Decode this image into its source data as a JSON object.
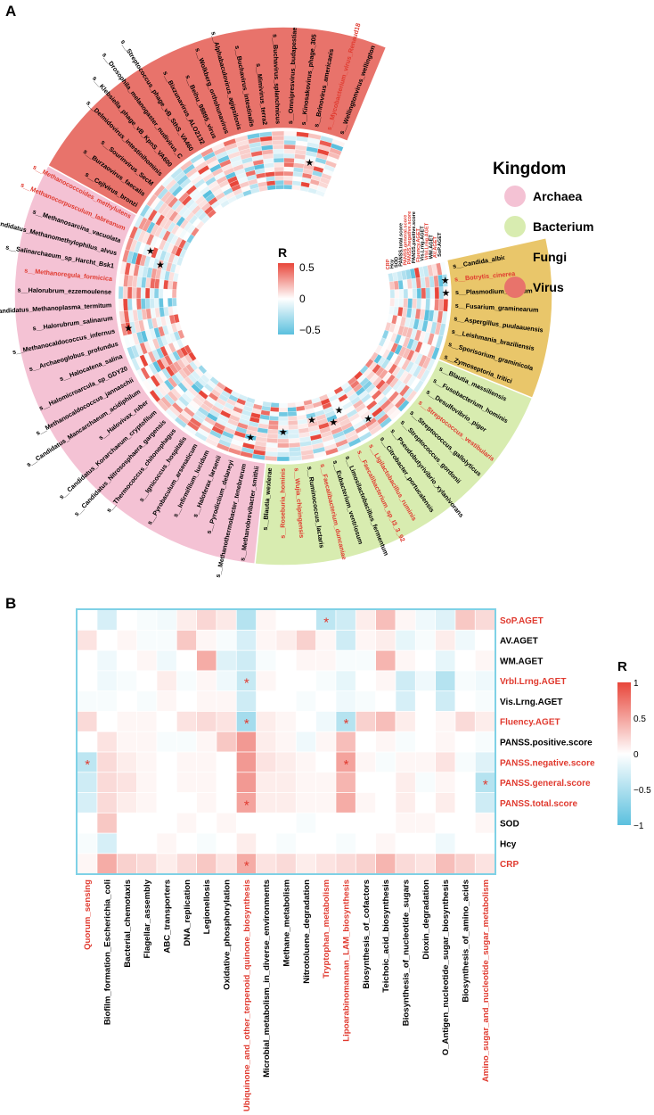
{
  "panel_labels": {
    "a": "A",
    "b": "B"
  },
  "colors": {
    "neg": "#5bc0de",
    "pos": "#e8463a",
    "mid": "#ffffff",
    "highlight": "#e03a2f",
    "heat_border": "#7fd1e6"
  },
  "chart_data": [
    {
      "type": "heatmap",
      "subtype": "circular",
      "legend_title": "Kingdom",
      "legend_items": [
        {
          "name": "Archaea",
          "color": "#f4c2d4"
        },
        {
          "name": "Bacterium",
          "color": "#d8ecb0"
        },
        {
          "name": "Fungi",
          "color": "#e9c66a"
        },
        {
          "name": "Virus",
          "color": "#e8736b"
        }
      ],
      "colorbar": {
        "title": "R",
        "ticks": [
          "0.5",
          "0",
          "−0.5"
        ],
        "range": [
          -0.5,
          0.5
        ]
      },
      "ring_labels": [
        "CRP",
        "Hcy",
        "SOD",
        "PANSS.total.score",
        "PANSS.general.score",
        "PANSS.negative.score",
        "PANSS.positive.score",
        "Fluency.AGET",
        "Vis.Lrng.AGET",
        "Vrbl.Lrng.AGET",
        "WM.AGET",
        "AV.AGET",
        "SoP.AGET"
      ],
      "ring_label_colors": [
        "red",
        "black",
        "black",
        "black",
        "red",
        "red",
        "black",
        "red",
        "black",
        "red",
        "black",
        "red",
        "black"
      ],
      "species": [
        {
          "name": "s__Candida_albicans",
          "kingdom": "Fungi",
          "highlight": false
        },
        {
          "name": "s__Botrytis_cinerea",
          "kingdom": "Fungi",
          "highlight": true
        },
        {
          "name": "s__Plasmodium_relictum",
          "kingdom": "Fungi",
          "highlight": false
        },
        {
          "name": "s__Fusarium_graminearum",
          "kingdom": "Fungi",
          "highlight": false
        },
        {
          "name": "s__Aspergillus_puulaauensis",
          "kingdom": "Fungi",
          "highlight": false
        },
        {
          "name": "s__Leishmania_braziliensis",
          "kingdom": "Fungi",
          "highlight": false
        },
        {
          "name": "s__Sporisorium_graminicola",
          "kingdom": "Fungi",
          "highlight": false
        },
        {
          "name": "s__Zymoseptoria_tritici",
          "kingdom": "Fungi",
          "highlight": false
        },
        {
          "name": "s__Blautia_massiliensis",
          "kingdom": "Bacterium",
          "highlight": false
        },
        {
          "name": "s__Fusobacterium_hominis",
          "kingdom": "Bacterium",
          "highlight": false
        },
        {
          "name": "s__Desulfovibrio_piger",
          "kingdom": "Bacterium",
          "highlight": false
        },
        {
          "name": "s__Streptococcus_vestibularis",
          "kingdom": "Bacterium",
          "highlight": true
        },
        {
          "name": "s__Streptococcus_gallolyticus",
          "kingdom": "Bacterium",
          "highlight": false
        },
        {
          "name": "s__Streptococcus_gordonii",
          "kingdom": "Bacterium",
          "highlight": false
        },
        {
          "name": "s__Pseudobutyrivibrio_xylanivorans",
          "kingdom": "Bacterium",
          "highlight": false
        },
        {
          "name": "s__Citrobacter_portucalensis",
          "kingdom": "Bacterium",
          "highlight": false
        },
        {
          "name": "s__Ligilactobacillus_ruminis",
          "kingdom": "Bacterium",
          "highlight": true
        },
        {
          "name": "s__Faecalibacterium_sp_I3_3_92",
          "kingdom": "Bacterium",
          "highlight": true
        },
        {
          "name": "s__Limosilactobacillus_fermentum",
          "kingdom": "Bacterium",
          "highlight": false
        },
        {
          "name": "s__Eubacterium_ventriosum",
          "kingdom": "Bacterium",
          "highlight": false
        },
        {
          "name": "s__Faecalibacterium_duncaniae",
          "kingdom": "Bacterium",
          "highlight": true
        },
        {
          "name": "s__Ruminococcus_lactaris",
          "kingdom": "Bacterium",
          "highlight": false
        },
        {
          "name": "s__Wujia_chipingensis",
          "kingdom": "Bacterium",
          "highlight": true
        },
        {
          "name": "s__Roseburia_hominis",
          "kingdom": "Bacterium",
          "highlight": true
        },
        {
          "name": "s__Blautia_wexlerae",
          "kingdom": "Bacterium",
          "highlight": false
        },
        {
          "name": "s__Methanobrevibacter_smithii",
          "kingdom": "Archaea",
          "highlight": false
        },
        {
          "name": "s__Methanothermobacter_tenebrarum",
          "kingdom": "Archaea",
          "highlight": false
        },
        {
          "name": "s__Pyrodictium_delaneyi",
          "kingdom": "Archaea",
          "highlight": false
        },
        {
          "name": "s__Haloferax_larsenii",
          "kingdom": "Archaea",
          "highlight": false
        },
        {
          "name": "s__Infirmifilum_lucidum",
          "kingdom": "Archaea",
          "highlight": false
        },
        {
          "name": "s__Pyrobaculum_arsenaticum",
          "kingdom": "Archaea",
          "highlight": false
        },
        {
          "name": "s__Ignicoccus_hospitalis",
          "kingdom": "Archaea",
          "highlight": false
        },
        {
          "name": "s__Thermococcus_chitonophagus",
          "kingdom": "Archaea",
          "highlight": false
        },
        {
          "name": "s__Candidatus_Nitrososphaera_gargensis",
          "kingdom": "Archaea",
          "highlight": false
        },
        {
          "name": "s__Candidatus_Korarchaeum_cryptofilum",
          "kingdom": "Archaea",
          "highlight": false
        },
        {
          "name": "s__Halovivax_ruber",
          "kingdom": "Archaea",
          "highlight": false
        },
        {
          "name": "s__Candidatus_Mancarchaeum_acidiphilum",
          "kingdom": "Archaea",
          "highlight": false
        },
        {
          "name": "s__Methanocaldococcus_jannaschii",
          "kingdom": "Archaea",
          "highlight": false
        },
        {
          "name": "s__Halomicroarcula_sp_GDY20",
          "kingdom": "Archaea",
          "highlight": false
        },
        {
          "name": "s__Halocatena_salina",
          "kingdom": "Archaea",
          "highlight": false
        },
        {
          "name": "s__Archaeoglobus_profundus",
          "kingdom": "Archaea",
          "highlight": false
        },
        {
          "name": "s__Methanocaldococcus_infernus",
          "kingdom": "Archaea",
          "highlight": false
        },
        {
          "name": "s__Halorubrum_salinarum",
          "kingdom": "Archaea",
          "highlight": false
        },
        {
          "name": "s__Candidatus_Methanoplasma_termitum",
          "kingdom": "Archaea",
          "highlight": false
        },
        {
          "name": "s__Halorubrum_ezzemoulense",
          "kingdom": "Archaea",
          "highlight": false
        },
        {
          "name": "s__Methanoregula_formicica",
          "kingdom": "Archaea",
          "highlight": true
        },
        {
          "name": "s__Salinarchaeum_sp_Harcht_Bsk1",
          "kingdom": "Archaea",
          "highlight": false
        },
        {
          "name": "s__Candidatus_Methanomethylophilus_alvus",
          "kingdom": "Archaea",
          "highlight": false
        },
        {
          "name": "s__Methanosarcina_vacuolata",
          "kingdom": "Archaea",
          "highlight": false
        },
        {
          "name": "s__Methanocorpusculum_labreanum",
          "kingdom": "Archaea",
          "highlight": true
        },
        {
          "name": "s__Methanococcoides_methylutens",
          "kingdom": "Archaea",
          "highlight": true
        },
        {
          "name": "s__Cejlvirus_bronzi",
          "kingdom": "Virus",
          "highlight": false
        },
        {
          "name": "s__Burzaovirus_faecalis",
          "kingdom": "Virus",
          "highlight": false
        },
        {
          "name": "s__Sourinvirus_SecM",
          "kingdom": "Virus",
          "highlight": false
        },
        {
          "name": "s__Delmidovirus_intestinihominis",
          "kingdom": "Virus",
          "highlight": false
        },
        {
          "name": "s__Klebsiella_phage_vB_KpnS_VA600",
          "kingdom": "Virus",
          "highlight": false
        },
        {
          "name": "s__Drosophila_melanogaster_nudivirus_C",
          "kingdom": "Virus",
          "highlight": false
        },
        {
          "name": "s__Streptococcus_phage_vB_SthS_VA460",
          "kingdom": "Virus",
          "highlight": false
        },
        {
          "name": "s__Bixzunavirus_ALO2132",
          "kingdom": "Virus",
          "highlight": false
        },
        {
          "name": "s__Beihu_98895_virus",
          "kingdom": "Virus",
          "highlight": false
        },
        {
          "name": "s__Wolkberg_orthohunavirus",
          "kingdom": "Virus",
          "highlight": false
        },
        {
          "name": "s__Alphabaculovirus_agipsilonis",
          "kingdom": "Virus",
          "highlight": false
        },
        {
          "name": "s__Buchavirus_intestinalis",
          "kingdom": "Virus",
          "highlight": false
        },
        {
          "name": "s__Mimivirus_terra2",
          "kingdom": "Virus",
          "highlight": false
        },
        {
          "name": "s__Buchavirus_splanchnicus",
          "kingdom": "Virus",
          "highlight": false
        },
        {
          "name": "s__Omnipresvirus_budapestiae",
          "kingdom": "Virus",
          "highlight": false
        },
        {
          "name": "s__Kinosakovirus_phage_305",
          "kingdom": "Virus",
          "highlight": false
        },
        {
          "name": "s__Brinovirus_americanis",
          "kingdom": "Virus",
          "highlight": false
        },
        {
          "name": "s__Mycobacterium_virus_Renaud18",
          "kingdom": "Virus",
          "highlight": true
        },
        {
          "name": "s__Wellingtonvirus_wellington",
          "kingdom": "Virus",
          "highlight": false
        }
      ]
    },
    {
      "type": "heatmap",
      "colorbar": {
        "title": "R",
        "ticks": [
          "1",
          "0.5",
          "0",
          "−0.5",
          "−1"
        ],
        "range": [
          -1,
          1
        ]
      },
      "rows": [
        "SoP.AGET",
        "AV.AGET",
        "WM.AGET",
        "Vrbl.Lrng.AGET",
        "Vis.Lrng.AGET",
        "Fluency.AGET",
        "PANSS.positive.score",
        "PANSS.negative.score",
        "PANSS.general.score",
        "PANSS.total.score",
        "SOD",
        "Hcy",
        "CRP"
      ],
      "row_highlight": [
        true,
        false,
        false,
        true,
        false,
        true,
        false,
        true,
        true,
        true,
        false,
        false,
        true
      ],
      "columns": [
        "Quorum_sensing",
        "Biofilm_formation_Escherichia_coli",
        "Bacterial_chemotaxis",
        "Flagellar_assembly",
        "ABC_transporters",
        "DNA_replication",
        "Legionellosis",
        "Oxidative_phosphorylation",
        "Ubiquinone_and_other_terpenoid_quinone_biosynthesis",
        "Microbial_metabolism_in_diverse_environments",
        "Methane_metabolism",
        "Nitrotoluene_degradation",
        "Tryptophan_metabolism",
        "Lipoarabinomannan_LAM_biosynthesis",
        "Biosynthesis_of_cofactors",
        "Teichoic_acid_biosynthesis",
        "Biosynthesis_of_nucleotide_sugars",
        "Dioxin_degradation",
        "O_Antigen_nucleotide_sugar_biosynthesis",
        "Biosynthesis_of_amino_acids",
        "Amino_sugar_and_nucleotide_sugar_metabolism"
      ],
      "column_highlight": [
        true,
        false,
        false,
        false,
        false,
        false,
        false,
        false,
        true,
        false,
        false,
        false,
        true,
        true,
        false,
        false,
        false,
        false,
        false,
        false,
        true
      ],
      "values": [
        [
          0.0,
          -0.25,
          0.0,
          -0.05,
          -0.08,
          0.1,
          0.22,
          0.12,
          -0.45,
          0.05,
          0.0,
          0.0,
          -0.4,
          -0.3,
          0.1,
          0.35,
          0.05,
          -0.1,
          -0.2,
          0.3,
          0.2
        ],
        [
          0.15,
          0.0,
          0.05,
          -0.05,
          -0.05,
          0.3,
          0.05,
          -0.05,
          -0.25,
          0.05,
          0.1,
          0.25,
          0.05,
          -0.3,
          0.05,
          0.1,
          -0.15,
          -0.05,
          0.1,
          -0.1,
          0.0
        ],
        [
          0.0,
          -0.1,
          0.0,
          0.05,
          -0.1,
          0.0,
          0.45,
          -0.2,
          -0.3,
          -0.05,
          0.0,
          0.05,
          0.05,
          -0.05,
          -0.05,
          0.4,
          0.05,
          0.0,
          -0.15,
          0.0,
          0.05
        ],
        [
          0.0,
          -0.1,
          -0.05,
          0.0,
          0.1,
          -0.05,
          0.05,
          -0.1,
          -0.35,
          0.05,
          0.0,
          0.0,
          -0.05,
          -0.15,
          0.0,
          0.05,
          -0.3,
          -0.1,
          -0.45,
          -0.05,
          -0.1
        ],
        [
          -0.05,
          -0.05,
          0.0,
          -0.05,
          0.05,
          0.0,
          0.05,
          0.05,
          -0.3,
          0.0,
          0.0,
          -0.05,
          0.0,
          -0.1,
          -0.05,
          0.0,
          -0.25,
          0.0,
          -0.3,
          0.0,
          -0.05
        ],
        [
          0.2,
          0.0,
          0.05,
          0.05,
          0.0,
          0.15,
          0.2,
          0.15,
          -0.55,
          0.1,
          0.05,
          0.0,
          -0.1,
          -0.45,
          0.25,
          0.35,
          0.1,
          0.0,
          0.05,
          0.2,
          0.1
        ],
        [
          0.0,
          0.15,
          0.05,
          0.05,
          -0.05,
          -0.05,
          0.05,
          0.3,
          0.55,
          0.1,
          0.05,
          -0.1,
          0.05,
          0.35,
          0.0,
          0.05,
          -0.05,
          0.0,
          0.05,
          0.0,
          -0.05
        ],
        [
          -0.4,
          0.2,
          0.1,
          0.05,
          0.0,
          0.05,
          0.05,
          0.0,
          0.55,
          0.15,
          0.1,
          0.05,
          0.0,
          0.5,
          0.05,
          -0.05,
          0.05,
          0.05,
          0.15,
          -0.05,
          -0.2
        ],
        [
          -0.3,
          0.2,
          0.15,
          0.05,
          0.0,
          0.05,
          0.05,
          0.0,
          0.55,
          0.1,
          0.1,
          0.05,
          0.05,
          0.4,
          0.0,
          0.0,
          0.1,
          -0.05,
          0.05,
          0.0,
          -0.45
        ],
        [
          -0.25,
          0.2,
          0.1,
          0.05,
          0.0,
          0.0,
          0.05,
          0.0,
          0.5,
          0.1,
          0.1,
          0.05,
          0.05,
          0.45,
          0.05,
          0.0,
          0.1,
          0.0,
          0.1,
          0.0,
          -0.3
        ],
        [
          0.0,
          0.3,
          0.0,
          0.0,
          0.0,
          0.05,
          0.0,
          0.05,
          0.0,
          0.0,
          0.0,
          -0.05,
          0.0,
          0.0,
          0.0,
          0.0,
          0.05,
          0.05,
          0.0,
          0.0,
          0.05
        ],
        [
          -0.05,
          -0.25,
          0.0,
          0.0,
          0.05,
          0.0,
          -0.05,
          0.0,
          0.1,
          0.0,
          -0.05,
          0.0,
          0.0,
          -0.05,
          0.0,
          0.05,
          0.0,
          0.0,
          -0.1,
          0.0,
          0.0
        ],
        [
          0.05,
          0.45,
          0.25,
          0.2,
          0.1,
          0.2,
          0.3,
          0.15,
          0.45,
          0.15,
          0.2,
          0.1,
          0.15,
          0.2,
          0.25,
          0.4,
          0.2,
          0.15,
          0.35,
          0.25,
          0.15
        ]
      ],
      "significance": [
        [
          0,
          12
        ],
        [
          3,
          8
        ],
        [
          5,
          8
        ],
        [
          5,
          13
        ],
        [
          7,
          0
        ],
        [
          7,
          13
        ],
        [
          8,
          20
        ],
        [
          9,
          8
        ],
        [
          12,
          8
        ]
      ],
      "star": "*"
    }
  ]
}
